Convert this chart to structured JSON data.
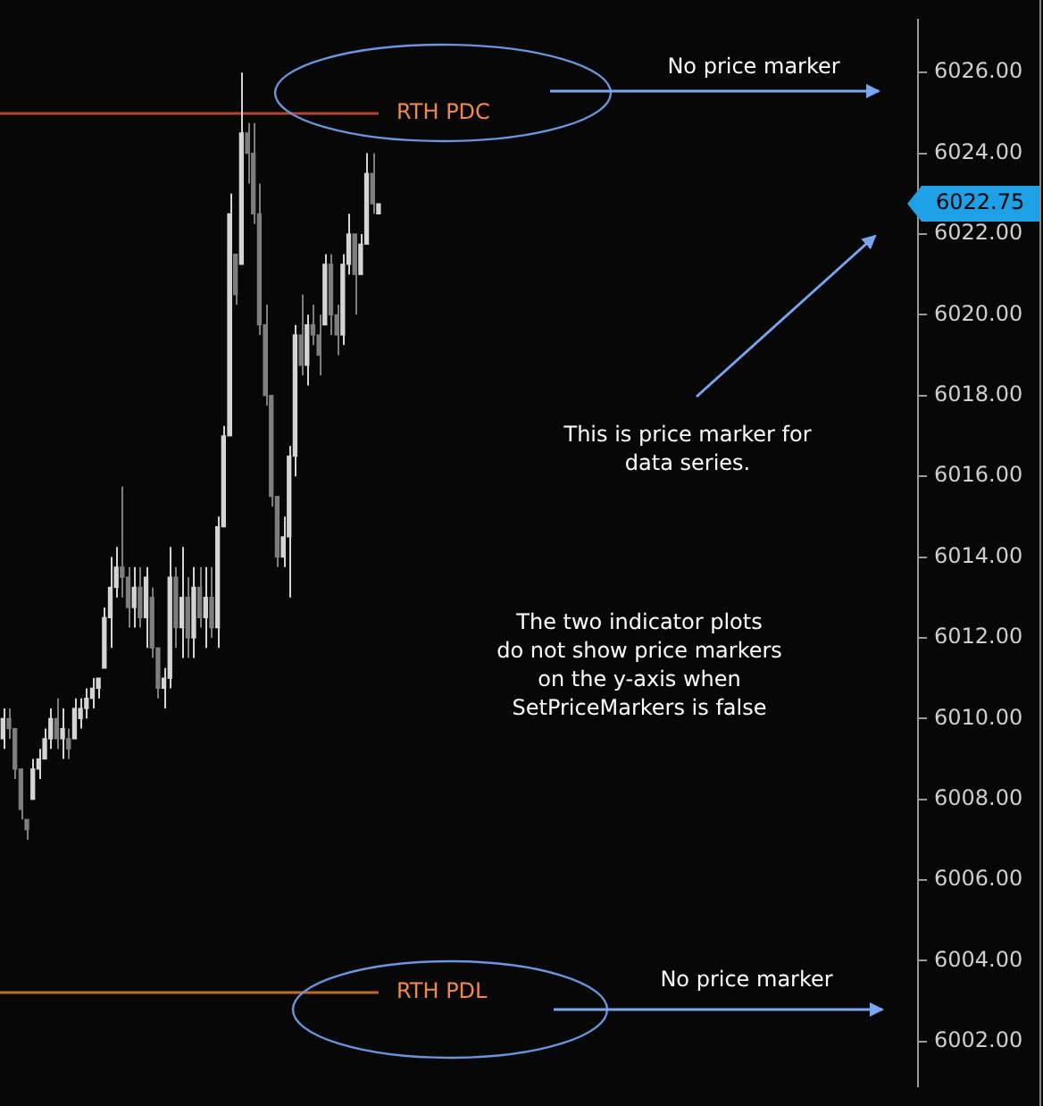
{
  "chart_data": {
    "type": "candlestick",
    "colors": [
      "#d4d4d4",
      "#7e7e7e",
      "#7e7e7e",
      "#7e7e7e",
      "#7e7e7e",
      "#d4d4d4",
      "#d4d4d4",
      "#d4d4d4",
      "#d4d4d4",
      "#7e7e7e",
      "#d4d4d4",
      "#7e7e7e",
      "#d4d4d4",
      "#d4d4d4",
      "#d4d4d4",
      "#d4d4d4",
      "#d4d4d4",
      "#d4d4d4",
      "#d4d4d4",
      "#d4d4d4",
      "#7e7e7e",
      "#7e7e7e",
      "#d4d4d4",
      "#7e7e7e",
      "#d4d4d4",
      "#7e7e7e",
      "#7e7e7e",
      "#d4d4d4",
      "#d4d4d4",
      "#7e7e7e",
      "#d4d4d4",
      "#7e7e7e",
      "#d4d4d4",
      "#7e7e7e",
      "#d4d4d4",
      "#7e7e7e",
      "#d4d4d4",
      "#d4d4d4",
      "#d4d4d4",
      "#7e7e7e",
      "#d4d4d4",
      "#7e7e7e",
      "#7e7e7e",
      "#7e7e7e",
      "#7e7e7e",
      "#7e7e7e",
      "#7e7e7e",
      "#d4d4d4",
      "#d4d4d4",
      "#d4d4d4",
      "#7e7e7e",
      "#d4d4d4",
      "#7e7e7e",
      "#7e7e7e",
      "#d4d4d4",
      "#7e7e7e",
      "#7e7e7e",
      "#d4d4d4",
      "#d4d4d4",
      "#7e7e7e",
      "#d4d4d4",
      "#d4d4d4",
      "#7e7e7e",
      "#d4d4d4",
      null,
      null,
      null,
      null,
      null,
      null,
      null,
      null,
      null,
      null,
      null,
      null,
      null,
      null,
      null,
      null,
      null,
      null,
      null,
      null,
      null,
      null,
      null,
      null,
      null,
      null,
      null,
      null,
      null,
      null,
      null,
      null,
      null,
      null,
      null,
      null,
      null,
      null,
      null,
      null,
      null,
      null,
      null,
      null,
      null,
      null,
      null,
      null,
      null,
      null,
      null,
      null,
      null,
      null,
      null,
      null,
      null,
      null,
      null,
      null,
      null,
      null,
      null,
      null,
      null,
      null,
      null,
      null,
      null,
      null,
      null,
      null,
      null,
      null,
      null,
      null,
      null,
      null,
      null,
      null,
      null,
      null,
      null,
      null,
      null,
      null,
      null,
      null,
      null,
      null
    ],
    "categories": [
      null,
      null,
      null,
      null,
      null,
      null,
      null,
      null,
      null,
      null,
      null,
      null,
      null,
      null,
      null,
      null,
      null,
      null,
      null,
      null,
      null,
      null,
      null,
      null,
      null,
      null,
      null,
      null,
      null,
      null,
      null,
      null,
      null,
      null,
      null,
      null,
      null,
      null,
      null,
      null,
      null,
      null,
      null,
      null,
      null,
      null,
      null,
      null,
      null,
      null,
      null,
      null,
      null,
      null,
      null,
      null,
      null,
      null,
      null,
      null,
      null,
      null,
      null,
      null,
      null,
      null,
      null,
      null,
      null,
      null,
      null,
      null,
      null,
      null,
      null,
      null,
      null,
      null,
      null,
      null,
      null,
      null,
      null,
      null,
      null,
      null,
      null,
      null,
      null,
      null,
      null,
      null,
      null,
      null,
      null,
      null,
      null,
      null,
      null,
      null,
      null,
      null,
      null,
      null,
      null,
      null,
      null,
      null,
      null,
      null,
      null,
      null,
      null,
      null,
      null,
      null,
      null,
      null,
      null,
      null,
      null,
      null,
      null,
      null,
      null,
      null,
      null,
      null,
      null,
      null,
      null,
      null,
      null,
      null,
      null,
      null,
      null,
      null,
      null,
      null,
      null,
      null,
      null,
      null,
      null,
      null,
      null,
      null,
      null,
      null,
      null,
      null,
      null,
      null
    ],
    "ohlc": [
      [
        6009.5,
        6010.25,
        6009.25,
        6010
      ],
      [
        6010,
        6010.25,
        6009.5,
        6009.75
      ],
      [
        6009.75,
        6009.75,
        6008.5,
        6008.75
      ],
      [
        6008.75,
        6008.75,
        6007.5,
        6007.75
      ],
      [
        6007.5,
        6007.5,
        6007,
        6007.25
      ],
      [
        6008,
        6009,
        6008,
        6008.75
      ],
      [
        6008.75,
        6009.25,
        6008.5,
        6009
      ],
      [
        6009,
        6009.75,
        6009,
        6009.5
      ],
      [
        6009.5,
        6010.25,
        6009.25,
        6010
      ],
      [
        6010,
        6010.5,
        6009.25,
        6009.5
      ],
      [
        6009.5,
        6010.25,
        6009,
        6009.75
      ],
      [
        6009.5,
        6009.75,
        6009,
        6009.25
      ],
      [
        6009.5,
        6010.5,
        6009.5,
        6010.25
      ],
      [
        6010,
        6010.5,
        6009.75,
        6010.25
      ],
      [
        6010.25,
        6010.75,
        6010,
        6010.5
      ],
      [
        6010.5,
        6011,
        6010.25,
        6010.75
      ],
      [
        6010.75,
        6011,
        6010.5,
        6011
      ],
      [
        6011.25,
        6012.75,
        6011.25,
        6012.5
      ],
      [
        6012.5,
        6014,
        6011.75,
        6013.25
      ],
      [
        6013.25,
        6014.25,
        6013,
        6013.75
      ],
      [
        6013.75,
        6015.75,
        6013,
        6013.5
      ],
      [
        6013.5,
        6013.75,
        6012.25,
        6012.75
      ],
      [
        6012.75,
        6013.75,
        6012.25,
        6013.25
      ],
      [
        6013.25,
        6013.75,
        6012.25,
        6012.5
      ],
      [
        6012.5,
        6013.75,
        6011.75,
        6013.5
      ],
      [
        6013,
        6013.25,
        6011.5,
        6011.75
      ],
      [
        6011.75,
        6011.75,
        6010.5,
        6010.75
      ],
      [
        6010.75,
        6011.25,
        6010.25,
        6011
      ],
      [
        6011,
        6014.25,
        6010.75,
        6013.5
      ],
      [
        6013.5,
        6013.75,
        6011.75,
        6012.25
      ],
      [
        6012.25,
        6014.25,
        6011.5,
        6013
      ],
      [
        6013,
        6013.5,
        6011.5,
        6012
      ],
      [
        6012,
        6013.75,
        6011.5,
        6013.25
      ],
      [
        6013.25,
        6013.75,
        6012.25,
        6012.5
      ],
      [
        6012.5,
        6013.75,
        6011.75,
        6013
      ],
      [
        6013,
        6013.75,
        6012,
        6012.25
      ],
      [
        6012.25,
        6015,
        6011.75,
        6014.75
      ],
      [
        6014.75,
        6017.25,
        6014.75,
        6017
      ],
      [
        6017,
        6023,
        6017,
        6022.5
      ],
      [
        6021.5,
        6021.5,
        6020.25,
        6020.5
      ],
      [
        6021.25,
        6026,
        6021.25,
        6024.5
      ],
      [
        6024.5,
        6024.75,
        6023.25,
        6024
      ],
      [
        6024,
        6024.75,
        6022.25,
        6022.5
      ],
      [
        6022.5,
        6023.25,
        6019.5,
        6019.75
      ],
      [
        6019.75,
        6020.25,
        6017.75,
        6018
      ],
      [
        6018,
        6018,
        6015.25,
        6015.5
      ],
      [
        6015.5,
        6015.5,
        6013.75,
        6014
      ],
      [
        6014,
        6015,
        6013.75,
        6014.5
      ],
      [
        6014.5,
        6016.75,
        6013,
        6016.5
      ],
      [
        6016.5,
        6019.75,
        6016,
        6019.5
      ],
      [
        6019.5,
        6020.5,
        6018.5,
        6018.75
      ],
      [
        6018.75,
        6020,
        6018.25,
        6019.75
      ],
      [
        6019.75,
        6020.25,
        6019.25,
        6019.5
      ],
      [
        6019.5,
        6020,
        6018.5,
        6019
      ],
      [
        6019.75,
        6021.5,
        6019.75,
        6021.25
      ],
      [
        6021.25,
        6021.5,
        6019.5,
        6020
      ],
      [
        6020,
        6020.25,
        6019,
        6019.5
      ],
      [
        6019.5,
        6021.5,
        6019.25,
        6021.25
      ],
      [
        6021.25,
        6022.5,
        6021,
        6022
      ],
      [
        6022,
        6022,
        6020,
        6021
      ],
      [
        6021,
        6022,
        6021,
        6021.75
      ],
      [
        6021.75,
        6024,
        6021.75,
        6023.5
      ],
      [
        6023.5,
        6024,
        6022.5,
        6022.75
      ],
      [
        6022.5,
        6022.75,
        6022.5,
        6022.75
      ],
      null,
      null,
      null,
      null,
      null,
      null,
      null,
      null,
      null,
      null,
      null,
      null,
      null,
      null,
      null,
      null,
      null,
      null,
      null,
      null,
      null,
      null,
      null,
      null,
      null,
      null,
      null,
      null,
      null,
      null,
      null,
      null,
      null,
      null,
      null,
      null,
      null,
      null,
      null,
      null,
      null,
      null,
      null,
      null,
      null,
      null,
      null,
      null,
      null,
      null,
      null,
      null,
      null,
      null,
      null,
      null,
      null,
      null,
      null,
      null,
      null,
      null,
      null,
      null,
      null,
      null,
      null,
      null,
      null,
      null,
      null,
      null,
      null,
      null,
      null,
      null,
      null,
      null,
      null,
      null,
      null,
      null,
      null,
      null,
      null,
      null,
      null,
      null,
      null,
      null
    ],
    "ylim": [
      6000.9,
      6027.3
    ],
    "yticks": [
      {
        "value": 6002,
        "label": "6002.00"
      },
      {
        "value": 6004,
        "label": "6004.00"
      },
      {
        "value": 6006,
        "label": "6006.00"
      },
      {
        "value": 6008,
        "label": "6008.00"
      },
      {
        "value": 6010,
        "label": "6010.00"
      },
      {
        "value": 6012,
        "label": "6012.00"
      },
      {
        "value": 6014,
        "label": "6014.00"
      },
      {
        "value": 6016,
        "label": "6016.00"
      },
      {
        "value": 6018,
        "label": "6018.00"
      },
      {
        "value": 6020,
        "label": "6020.00"
      },
      {
        "value": 6022,
        "label": "6022.00"
      },
      {
        "value": 6024,
        "label": "6024.00"
      },
      {
        "value": 6026,
        "label": "6026.00"
      }
    ],
    "ref_lines": [
      {
        "axis": "y",
        "value": 6025,
        "label": "RTH PDC",
        "color": "#b5452e"
      },
      {
        "axis": "y",
        "value": 6003.25,
        "label": "RTH PDL",
        "color": "#c06a20"
      }
    ],
    "annotations": [
      "No price marker",
      "This is price marker for\ndata series.",
      "The two indicator plots\ndo not show price markers\non the y-axis when\nSetPriceMarkers is false",
      "No price marker",
      "6022.75"
    ]
  }
}
